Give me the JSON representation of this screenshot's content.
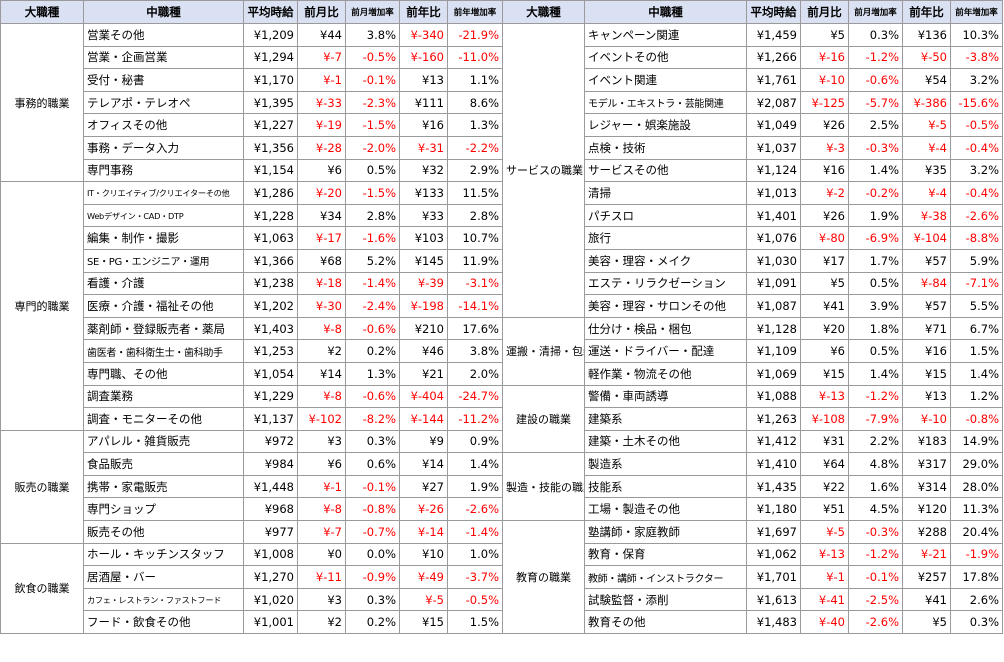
{
  "headers": [
    "大職種",
    "中職種",
    "平均時給",
    "前月比",
    "前月増加率",
    "前年比",
    "前年増加率"
  ],
  "left_groups": [
    {
      "name": "事務的職業",
      "rows": [
        [
          "営業その他",
          "¥1,209",
          "¥44",
          "3.8%",
          "¥-340",
          "-21.9%"
        ],
        [
          "営業・企画営業",
          "¥1,294",
          "¥-7",
          "-0.5%",
          "¥-160",
          "-11.0%"
        ],
        [
          "受付・秘書",
          "¥1,170",
          "¥-1",
          "-0.1%",
          "¥13",
          "1.1%"
        ],
        [
          "テレアポ・テレオペ",
          "¥1,395",
          "¥-33",
          "-2.3%",
          "¥111",
          "8.6%"
        ],
        [
          "オフィスその他",
          "¥1,227",
          "¥-19",
          "-1.5%",
          "¥16",
          "1.3%"
        ],
        [
          "事務・データ入力",
          "¥1,356",
          "¥-28",
          "-2.0%",
          "¥-31",
          "-2.2%"
        ],
        [
          "専門事務",
          "¥1,154",
          "¥6",
          "0.5%",
          "¥32",
          "2.9%"
        ]
      ]
    },
    {
      "name": "専門的職業",
      "rows": [
        [
          "IT・クリエイティブ/クリエイターその他",
          "¥1,286",
          "¥-20",
          "-1.5%",
          "¥133",
          "11.5%"
        ],
        [
          "Webデザイン・CAD・DTP",
          "¥1,228",
          "¥34",
          "2.8%",
          "¥33",
          "2.8%"
        ],
        [
          "編集・制作・撮影",
          "¥1,063",
          "¥-17",
          "-1.6%",
          "¥103",
          "10.7%"
        ],
        [
          "SE・PG・エンジニア・運用",
          "¥1,366",
          "¥68",
          "5.2%",
          "¥145",
          "11.9%"
        ],
        [
          "看護・介護",
          "¥1,238",
          "¥-18",
          "-1.4%",
          "¥-39",
          "-3.1%"
        ],
        [
          "医療・介護・福祉その他",
          "¥1,202",
          "¥-30",
          "-2.4%",
          "¥-198",
          "-14.1%"
        ],
        [
          "薬剤師・登録販売者・薬局",
          "¥1,403",
          "¥-8",
          "-0.6%",
          "¥210",
          "17.6%"
        ],
        [
          "歯医者・歯科衛生士・歯科助手",
          "¥1,253",
          "¥2",
          "0.2%",
          "¥46",
          "3.8%"
        ],
        [
          "専門職、その他",
          "¥1,054",
          "¥14",
          "1.3%",
          "¥21",
          "2.0%"
        ],
        [
          "調査業務",
          "¥1,229",
          "¥-8",
          "-0.6%",
          "¥-404",
          "-24.7%"
        ],
        [
          "調査・モニターその他",
          "¥1,137",
          "¥-102",
          "-8.2%",
          "¥-144",
          "-11.2%"
        ]
      ]
    },
    {
      "name": "販売の職業",
      "rows": [
        [
          "アパレル・雑貨販売",
          "¥972",
          "¥3",
          "0.3%",
          "¥9",
          "0.9%"
        ],
        [
          "食品販売",
          "¥984",
          "¥6",
          "0.6%",
          "¥14",
          "1.4%"
        ],
        [
          "携帯・家電販売",
          "¥1,448",
          "¥-1",
          "-0.1%",
          "¥27",
          "1.9%"
        ],
        [
          "専門ショップ",
          "¥968",
          "¥-8",
          "-0.8%",
          "¥-26",
          "-2.6%"
        ],
        [
          "販売その他",
          "¥977",
          "¥-7",
          "-0.7%",
          "¥-14",
          "-1.4%"
        ]
      ]
    },
    {
      "name": "飲食の職業",
      "rows": [
        [
          "ホール・キッチンスタッフ",
          "¥1,008",
          "¥0",
          "0.0%",
          "¥10",
          "1.0%"
        ],
        [
          "居酒屋・バー",
          "¥1,270",
          "¥-11",
          "-0.9%",
          "¥-49",
          "-3.7%"
        ],
        [
          "カフェ・レストラン・ファストフード",
          "¥1,020",
          "¥3",
          "0.3%",
          "¥-5",
          "-0.5%"
        ],
        [
          "フード・飲食その他",
          "¥1,001",
          "¥2",
          "0.2%",
          "¥15",
          "1.5%"
        ]
      ]
    }
  ],
  "right_groups": [
    {
      "name": "サービスの職業",
      "rows": [
        [
          "キャンペーン関連",
          "¥1,459",
          "¥5",
          "0.3%",
          "¥136",
          "10.3%"
        ],
        [
          "イベントその他",
          "¥1,266",
          "¥-16",
          "-1.2%",
          "¥-50",
          "-3.8%"
        ],
        [
          "イベント関連",
          "¥1,761",
          "¥-10",
          "-0.6%",
          "¥54",
          "3.2%"
        ],
        [
          "モデル・エキストラ・芸能関連",
          "¥2,087",
          "¥-125",
          "-5.7%",
          "¥-386",
          "-15.6%"
        ],
        [
          "レジャー・娯楽施設",
          "¥1,049",
          "¥26",
          "2.5%",
          "¥-5",
          "-0.5%"
        ],
        [
          "点検・技術",
          "¥1,037",
          "¥-3",
          "-0.3%",
          "¥-4",
          "-0.4%"
        ],
        [
          "サービスその他",
          "¥1,124",
          "¥16",
          "1.4%",
          "¥35",
          "3.2%"
        ],
        [
          "清掃",
          "¥1,013",
          "¥-2",
          "-0.2%",
          "¥-4",
          "-0.4%"
        ],
        [
          "パチスロ",
          "¥1,401",
          "¥26",
          "1.9%",
          "¥-38",
          "-2.6%"
        ],
        [
          "旅行",
          "¥1,076",
          "¥-80",
          "-6.9%",
          "¥-104",
          "-8.8%"
        ],
        [
          "美容・理容・メイク",
          "¥1,030",
          "¥17",
          "1.7%",
          "¥57",
          "5.9%"
        ],
        [
          "エステ・リラクゼーション",
          "¥1,091",
          "¥5",
          "0.5%",
          "¥-84",
          "-7.1%"
        ],
        [
          "美容・理容・サロンその他",
          "¥1,087",
          "¥41",
          "3.9%",
          "¥57",
          "5.5%"
        ]
      ]
    },
    {
      "name": "運搬・清掃・包装等の職業",
      "rows": [
        [
          "仕分け・検品・梱包",
          "¥1,128",
          "¥20",
          "1.8%",
          "¥71",
          "6.7%"
        ],
        [
          "運送・ドライバー・配達",
          "¥1,109",
          "¥6",
          "0.5%",
          "¥16",
          "1.5%"
        ],
        [
          "軽作業・物流その他",
          "¥1,069",
          "¥15",
          "1.4%",
          "¥15",
          "1.4%"
        ]
      ]
    },
    {
      "name": "建設の職業",
      "rows": [
        [
          "警備・車両誘導",
          "¥1,088",
          "¥-13",
          "-1.2%",
          "¥13",
          "1.2%"
        ],
        [
          "建築系",
          "¥1,263",
          "¥-108",
          "-7.9%",
          "¥-10",
          "-0.8%"
        ],
        [
          "建築・土木その他",
          "¥1,412",
          "¥31",
          "2.2%",
          "¥183",
          "14.9%"
        ]
      ]
    },
    {
      "name": "製造・技能の職業",
      "rows": [
        [
          "製造系",
          "¥1,410",
          "¥64",
          "4.8%",
          "¥317",
          "29.0%"
        ],
        [
          "技能系",
          "¥1,435",
          "¥22",
          "1.6%",
          "¥314",
          "28.0%"
        ],
        [
          "工場・製造その他",
          "¥1,180",
          "¥51",
          "4.5%",
          "¥120",
          "11.3%"
        ]
      ]
    },
    {
      "name": "教育の職業",
      "rows": [
        [
          "塾講師・家庭教師",
          "¥1,697",
          "¥-5",
          "-0.3%",
          "¥288",
          "20.4%"
        ],
        [
          "教育・保育",
          "¥1,062",
          "¥-13",
          "-1.2%",
          "¥-21",
          "-1.9%"
        ],
        [
          "教師・講師・インストラクター",
          "¥1,701",
          "¥-1",
          "-0.1%",
          "¥257",
          "17.8%"
        ],
        [
          "試験監督・添削",
          "¥1,613",
          "¥-41",
          "-2.5%",
          "¥41",
          "2.6%"
        ],
        [
          "教育その他",
          "¥1,483",
          "¥-40",
          "-2.6%",
          "¥5",
          "0.3%"
        ]
      ]
    }
  ]
}
